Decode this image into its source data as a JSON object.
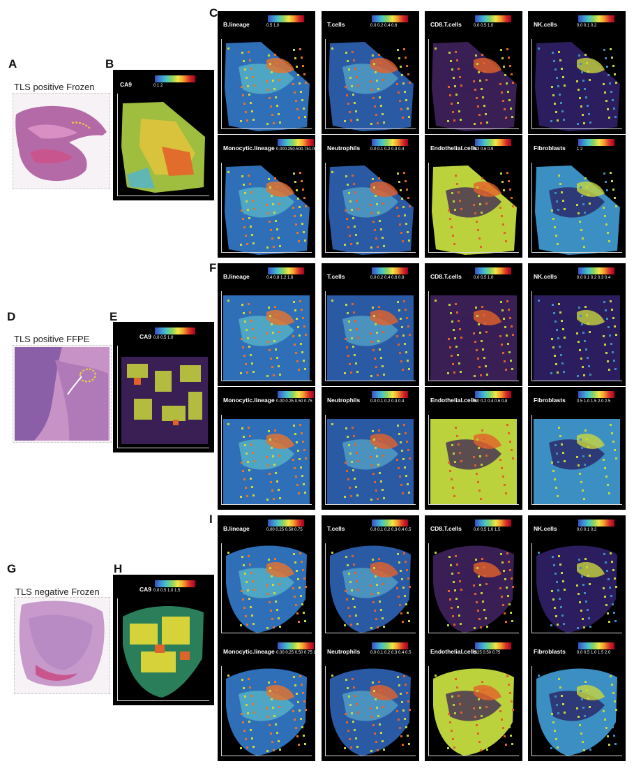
{
  "figure": {
    "rows": [
      {
        "he_letter": "A",
        "he_caption": "TLS positive Frozen",
        "ca9_letter": "B",
        "grid_letter": "C",
        "ca9": {
          "title": "CA9",
          "ticks": "0        1        2"
        },
        "panels": [
          {
            "title": "B.lineage",
            "ticks": "0.5      1.0"
          },
          {
            "title": "T.cells",
            "ticks": "0.0  0.2  0.4  0.6"
          },
          {
            "title": "CD8.T.cells",
            "ticks": "0.0    0.5    1.0"
          },
          {
            "title": "NK.cells",
            "ticks": "0.0   0.1   0.2"
          },
          {
            "title": "Monocytic.lineage",
            "ticks": "0.000.250.500.751.001.25"
          },
          {
            "title": "Neutrophils",
            "ticks": "0.0 0.1 0.2 0.3 0.4"
          },
          {
            "title": "Endothelial.cells",
            "ticks": "0.3    0.6    0.9"
          },
          {
            "title": "Fibroblasts",
            "ticks": "1        2"
          }
        ]
      },
      {
        "he_letter": "D",
        "he_caption": "TLS positive FFPE",
        "ca9_letter": "E",
        "grid_letter": "F",
        "ca9": {
          "title": "CA9",
          "ticks": "0.0      0.5      1.0"
        },
        "panels": [
          {
            "title": "B.lineage",
            "ticks": "0.4   0.8   1.2   1.6"
          },
          {
            "title": "T.cells",
            "ticks": "0.0 0.2 0.4 0.6 0.8"
          },
          {
            "title": "CD8.T.cells",
            "ticks": "0.0    0.5    1.0"
          },
          {
            "title": "NK.cells",
            "ticks": "0.0 0.1 0.2 0.3 0.4"
          },
          {
            "title": "Monocytic.lineage",
            "ticks": "0.00 0.25 0.50 0.75"
          },
          {
            "title": "Neutrophils",
            "ticks": "0.0 0.1 0.2 0.3 0.4"
          },
          {
            "title": "Endothelial.cells",
            "ticks": "0.0 0.2 0.4 0.6 0.8"
          },
          {
            "title": "Fibroblasts",
            "ticks": "0.5 1.0 1.5 2.0 2.5"
          }
        ]
      },
      {
        "he_letter": "G",
        "he_caption": "TLS negative Frozen",
        "ca9_letter": "H",
        "grid_letter": "I",
        "ca9": {
          "title": "CA9",
          "ticks": "0.0   0.5   1.0   1.5"
        },
        "panels": [
          {
            "title": "B.lineage",
            "ticks": "0.00 0.25 0.50 0.75"
          },
          {
            "title": "T.cells",
            "ticks": "0.0 0.1 0.2 0.3 0.4 0.5"
          },
          {
            "title": "CD8.T.cells",
            "ticks": "0.0  0.5  1.0  1.5"
          },
          {
            "title": "NK.cells",
            "ticks": "0.0    0.1    0.2"
          },
          {
            "title": "Monocytic.lineage",
            "ticks": "0.00 0.25 0.50 0.75 1.00"
          },
          {
            "title": "Neutrophils",
            "ticks": "0.0 0.1 0.2 0.3 0.4 0.5"
          },
          {
            "title": "Endothelial.cells",
            "ticks": "0.25  0.50  0.75"
          },
          {
            "title": "Fibroblasts",
            "ticks": "0.0 0.5 1.0 1.5 2.0"
          }
        ]
      }
    ]
  }
}
